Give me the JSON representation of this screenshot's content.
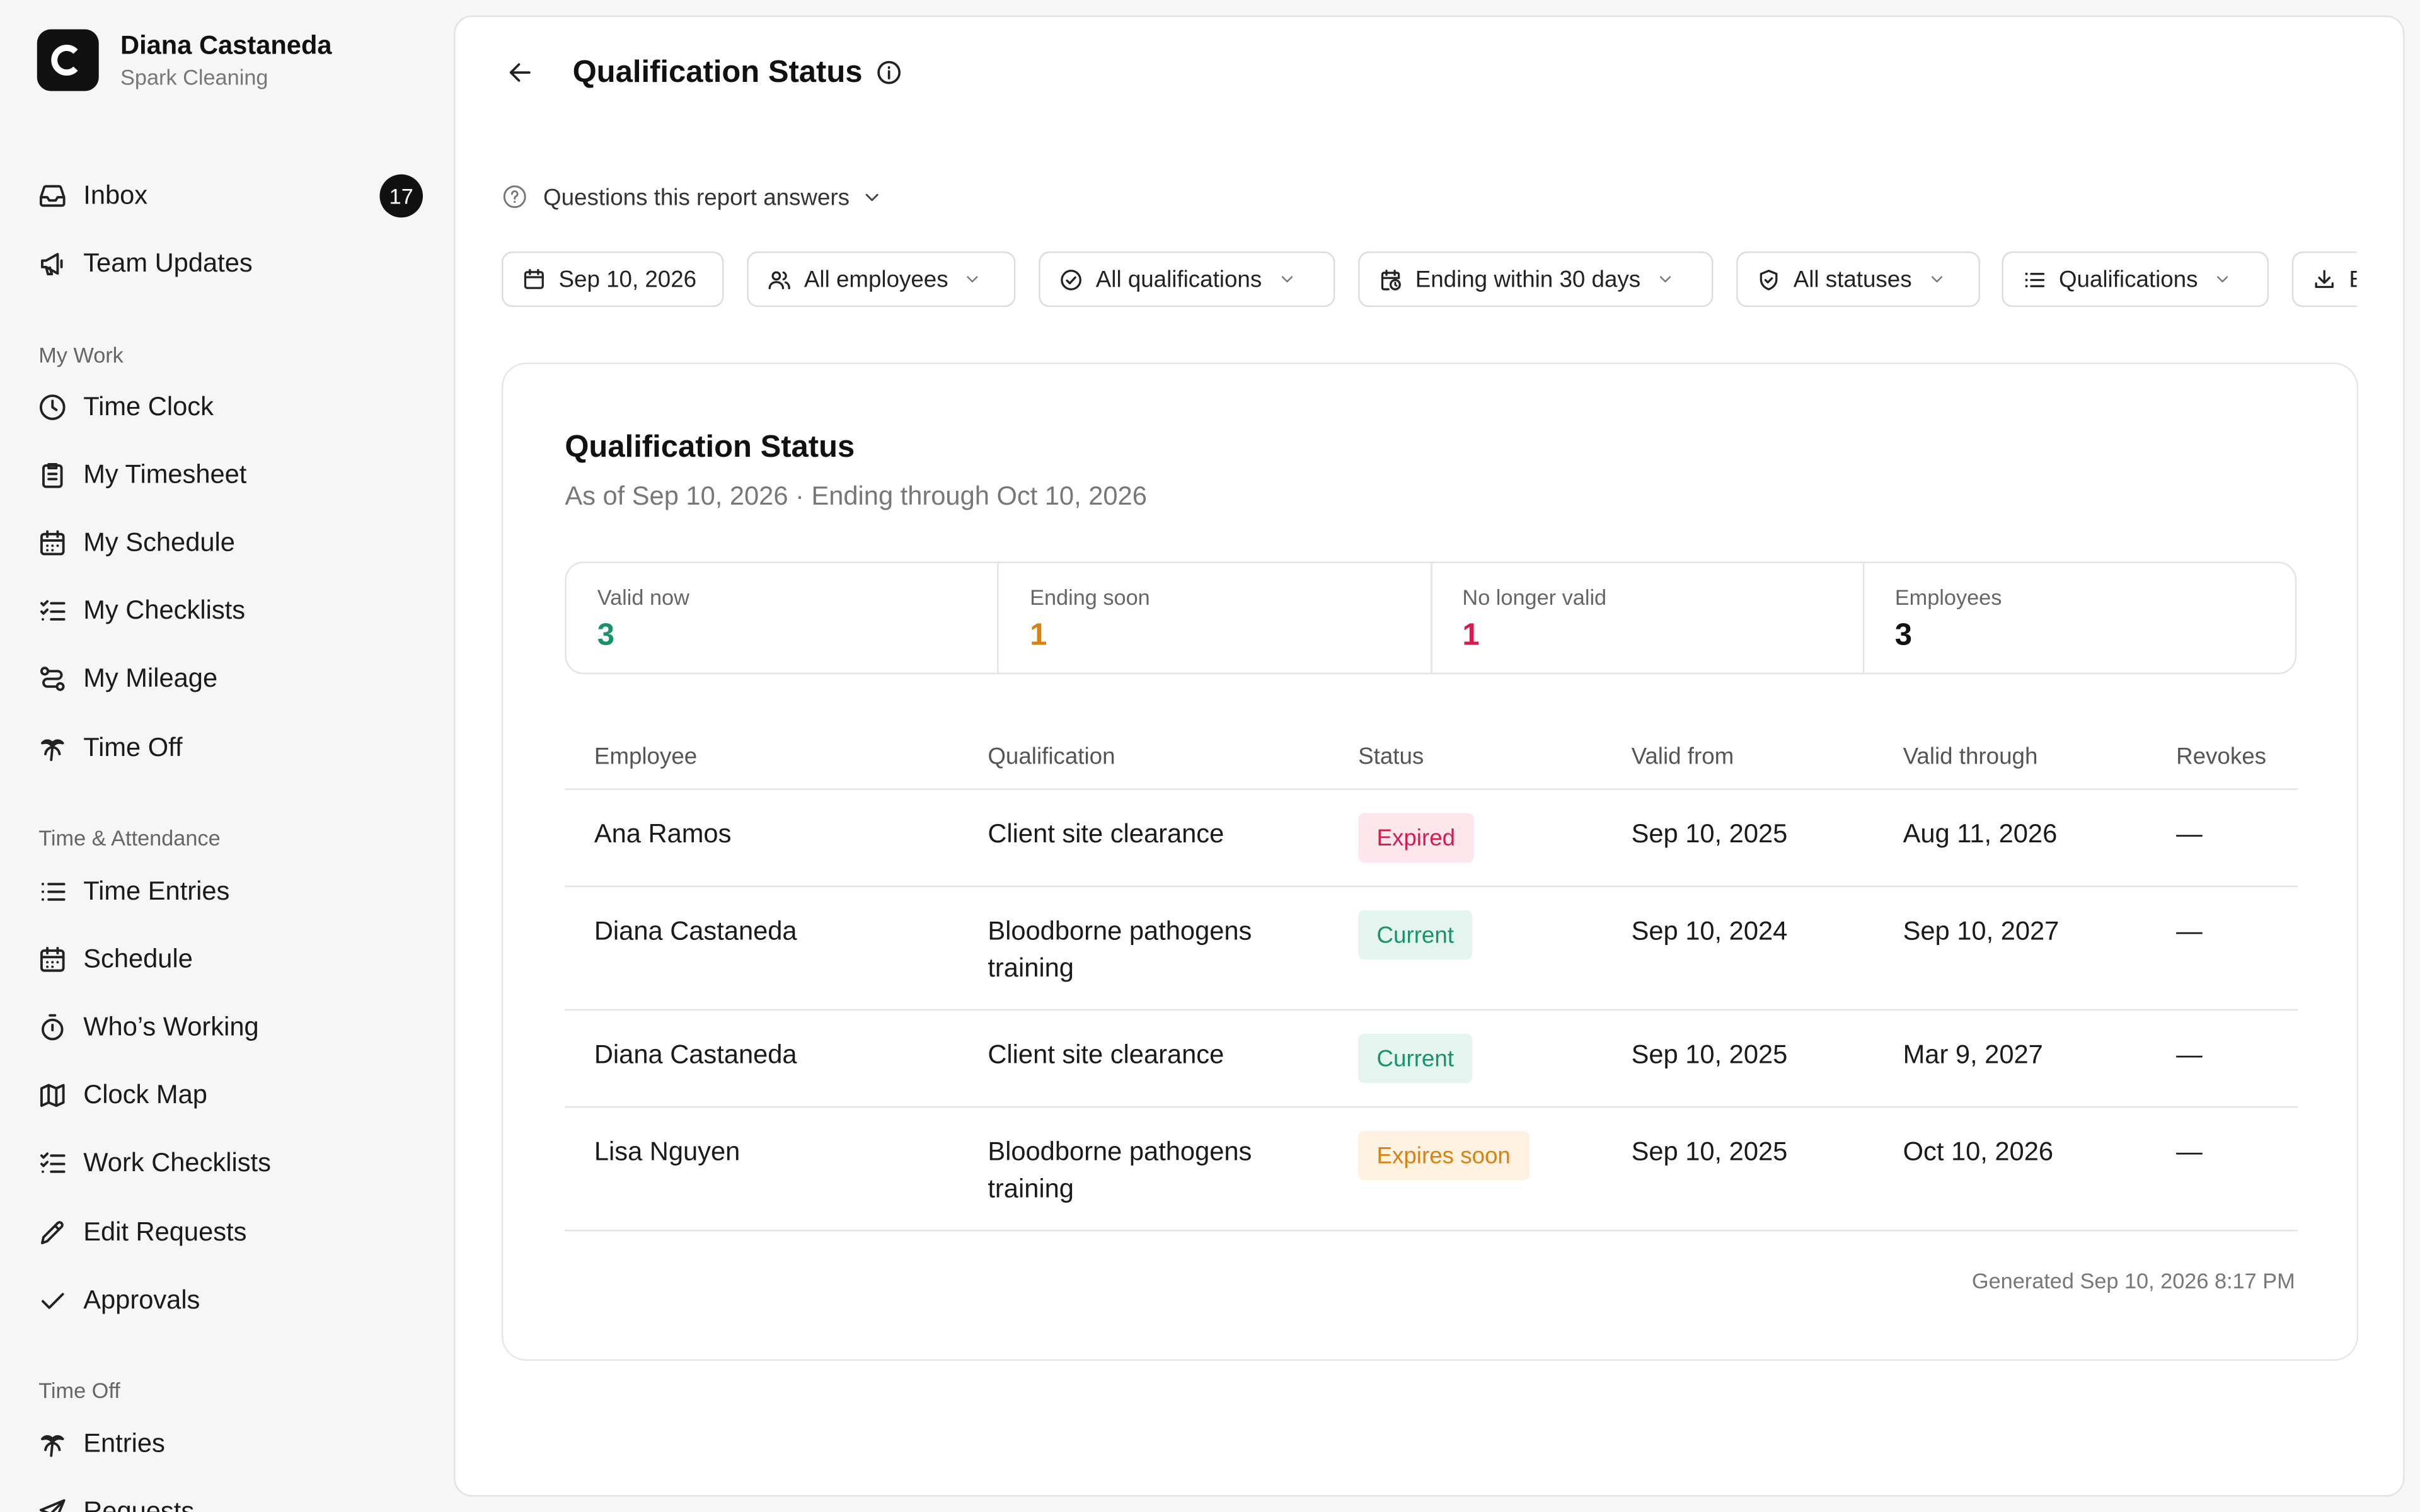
{
  "user": {
    "name": "Diana Castaneda",
    "org": "Spark Cleaning"
  },
  "sidebar": {
    "top_items": [
      {
        "label": "Inbox",
        "icon": "inbox-icon",
        "badge": "17"
      },
      {
        "label": "Team Updates",
        "icon": "megaphone-icon"
      }
    ],
    "sections": [
      {
        "label": "My Work",
        "items": [
          {
            "label": "Time Clock",
            "icon": "clock-icon"
          },
          {
            "label": "My Timesheet",
            "icon": "clipboard-icon"
          },
          {
            "label": "My Schedule",
            "icon": "calendar-icon"
          },
          {
            "label": "My Checklists",
            "icon": "checklist-icon"
          },
          {
            "label": "My Mileage",
            "icon": "route-icon"
          },
          {
            "label": "Time Off",
            "icon": "palm-tree-icon"
          }
        ]
      },
      {
        "label": "Time & Attendance",
        "items": [
          {
            "label": "Time Entries",
            "icon": "list-icon"
          },
          {
            "label": "Schedule",
            "icon": "calendar-icon"
          },
          {
            "label": "Who’s Working",
            "icon": "stopwatch-icon"
          },
          {
            "label": "Clock Map",
            "icon": "map-icon"
          },
          {
            "label": "Work Checklists",
            "icon": "checklist-icon"
          },
          {
            "label": "Edit Requests",
            "icon": "pencil-icon"
          },
          {
            "label": "Approvals",
            "icon": "check-icon"
          }
        ]
      },
      {
        "label": "Time Off",
        "items": [
          {
            "label": "Entries",
            "icon": "palm-tree-icon"
          },
          {
            "label": "Requests",
            "icon": "send-icon"
          }
        ]
      }
    ]
  },
  "header": {
    "title": "Qualification Status"
  },
  "questions": {
    "label": "Questions this report answers"
  },
  "filters": {
    "date": "Sep 10, 2026",
    "employees": "All employees",
    "qualifications": "All qualifications",
    "window": "Ending within 30 days",
    "statuses": "All statuses",
    "group": "Qualifications",
    "export": "E"
  },
  "report": {
    "title": "Qualification Status",
    "subtitle": "As of Sep 10, 2026 · Ending through Oct 10, 2026",
    "stats": [
      {
        "label": "Valid now",
        "value": "3",
        "color": "#17936a"
      },
      {
        "label": "Ending soon",
        "value": "1",
        "color": "#d9820f"
      },
      {
        "label": "No longer valid",
        "value": "1",
        "color": "#d81b4e"
      },
      {
        "label": "Employees",
        "value": "3",
        "color": "#111111"
      }
    ],
    "columns": [
      "Employee",
      "Qualification",
      "Status",
      "Valid from",
      "Valid through",
      "Revokes"
    ],
    "rows": [
      {
        "employee": "Ana Ramos",
        "qualification": "Client site clearance",
        "qualification2": "",
        "status": "Expired",
        "status_kind": "expired",
        "valid_from": "Sep 10, 2025",
        "valid_through": "Aug 11, 2026",
        "revokes": "—"
      },
      {
        "employee": "Diana Castaneda",
        "qualification": "Bloodborne pathogens",
        "qualification2": "training",
        "status": "Current",
        "status_kind": "current",
        "valid_from": "Sep 10, 2024",
        "valid_through": "Sep 10, 2027",
        "revokes": "—"
      },
      {
        "employee": "Diana Castaneda",
        "qualification": "Client site clearance",
        "qualification2": "",
        "status": "Current",
        "status_kind": "current",
        "valid_from": "Sep 10, 2025",
        "valid_through": "Mar 9, 2027",
        "revokes": "—"
      },
      {
        "employee": "Lisa Nguyen",
        "qualification": "Bloodborne pathogens",
        "qualification2": "training",
        "status": "Expires soon",
        "status_kind": "soon",
        "valid_from": "Sep 10, 2025",
        "valid_through": "Oct 10, 2026",
        "revokes": "—"
      }
    ],
    "generated": "Generated Sep 10, 2026 8:17 PM"
  },
  "colors": {
    "expired_bg": "#fde7ec",
    "expired_fg": "#d81b4e",
    "current_bg": "#e3f5ee",
    "current_fg": "#17936a",
    "soon_bg": "#fdf1e0",
    "soon_fg": "#d9820f"
  }
}
